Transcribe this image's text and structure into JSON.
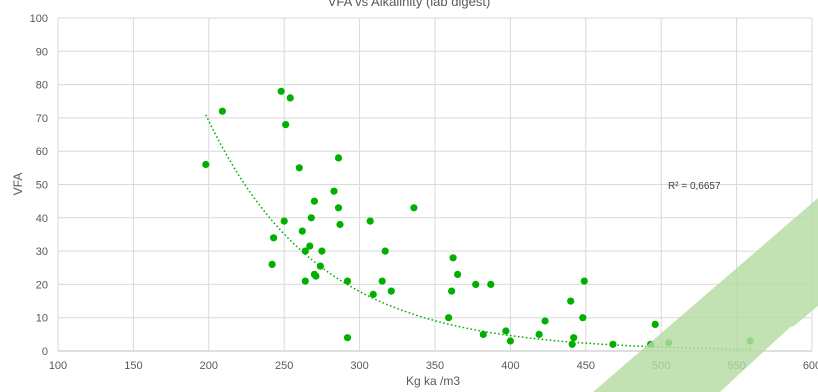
{
  "chart_data": {
    "type": "scatter",
    "title": "VFA vs Alkalinity (lab digest)",
    "xlabel": "Kg ka /m3",
    "ylabel": "VFA",
    "xlim": [
      100,
      600
    ],
    "ylim": [
      0,
      100
    ],
    "x_ticks": [
      "100",
      "150",
      "200",
      "250",
      "300",
      "350",
      "400",
      "450",
      "500",
      "550",
      "600"
    ],
    "y_ticks": [
      "0",
      "10",
      "20",
      "30",
      "40",
      "50",
      "60",
      "70",
      "80",
      "90",
      "100"
    ],
    "grid": true,
    "marker_color": "#00B000",
    "trendline": {
      "type": "exponential",
      "label": "R² = 0,6657",
      "color": "#00B000",
      "a": 1031.3,
      "b": -0.01352,
      "x_range": [
        198,
        560
      ]
    },
    "points": [
      {
        "x": 198,
        "y": 56
      },
      {
        "x": 209,
        "y": 72
      },
      {
        "x": 242,
        "y": 26
      },
      {
        "x": 243,
        "y": 34
      },
      {
        "x": 248,
        "y": 78
      },
      {
        "x": 250,
        "y": 39
      },
      {
        "x": 251,
        "y": 68
      },
      {
        "x": 254,
        "y": 76
      },
      {
        "x": 260,
        "y": 55
      },
      {
        "x": 262,
        "y": 36
      },
      {
        "x": 264,
        "y": 30
      },
      {
        "x": 264,
        "y": 21
      },
      {
        "x": 267,
        "y": 31.5
      },
      {
        "x": 268,
        "y": 40
      },
      {
        "x": 270,
        "y": 23
      },
      {
        "x": 270,
        "y": 45
      },
      {
        "x": 271,
        "y": 22.5
      },
      {
        "x": 274,
        "y": 25.5
      },
      {
        "x": 275,
        "y": 30
      },
      {
        "x": 283,
        "y": 48
      },
      {
        "x": 286,
        "y": 58
      },
      {
        "x": 286,
        "y": 43
      },
      {
        "x": 287,
        "y": 38
      },
      {
        "x": 292,
        "y": 21
      },
      {
        "x": 292,
        "y": 4
      },
      {
        "x": 307,
        "y": 39
      },
      {
        "x": 309,
        "y": 17
      },
      {
        "x": 315,
        "y": 21
      },
      {
        "x": 317,
        "y": 30
      },
      {
        "x": 321,
        "y": 18
      },
      {
        "x": 336,
        "y": 43
      },
      {
        "x": 359,
        "y": 10
      },
      {
        "x": 361,
        "y": 18
      },
      {
        "x": 362,
        "y": 28
      },
      {
        "x": 365,
        "y": 23
      },
      {
        "x": 377,
        "y": 20
      },
      {
        "x": 382,
        "y": 5
      },
      {
        "x": 387,
        "y": 20
      },
      {
        "x": 397,
        "y": 6
      },
      {
        "x": 400,
        "y": 3
      },
      {
        "x": 419,
        "y": 5
      },
      {
        "x": 423,
        "y": 9
      },
      {
        "x": 440,
        "y": 15
      },
      {
        "x": 441,
        "y": 2
      },
      {
        "x": 442,
        "y": 4
      },
      {
        "x": 448,
        "y": 10
      },
      {
        "x": 449,
        "y": 21
      },
      {
        "x": 468,
        "y": 2
      },
      {
        "x": 493,
        "y": 2
      },
      {
        "x": 496,
        "y": 8
      },
      {
        "x": 505,
        "y": 2.5
      },
      {
        "x": 559,
        "y": 3
      }
    ]
  }
}
